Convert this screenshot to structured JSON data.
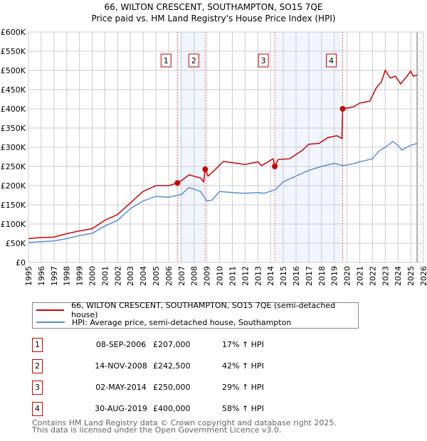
{
  "chart_data": {
    "type": "line",
    "title": "66, WILTON CRESCENT, SOUTHAMPTON, SO15 7QE",
    "subtitle": "Price paid vs. HM Land Registry's House Price Index (HPI)",
    "xlim": [
      1995,
      2026
    ],
    "ylim": [
      0,
      600000
    ],
    "x_ticks": [
      "1995",
      "1996",
      "1997",
      "1998",
      "1999",
      "2000",
      "2001",
      "2002",
      "2003",
      "2004",
      "2005",
      "2006",
      "2007",
      "2008",
      "2009",
      "2010",
      "2011",
      "2012",
      "2013",
      "2014",
      "2015",
      "2016",
      "2017",
      "2018",
      "2019",
      "2020",
      "2021",
      "2022",
      "2023",
      "2024",
      "2025",
      "2026"
    ],
    "y_ticks": [
      {
        "v": 0,
        "label": "£0"
      },
      {
        "v": 50000,
        "label": "£50K"
      },
      {
        "v": 100000,
        "label": "£100K"
      },
      {
        "v": 150000,
        "label": "£150K"
      },
      {
        "v": 200000,
        "label": "£200K"
      },
      {
        "v": 250000,
        "label": "£250K"
      },
      {
        "v": 300000,
        "label": "£300K"
      },
      {
        "v": 350000,
        "label": "£350K"
      },
      {
        "v": 400000,
        "label": "£400K"
      },
      {
        "v": 450000,
        "label": "£450K"
      },
      {
        "v": 500000,
        "label": "£500K"
      },
      {
        "v": 550000,
        "label": "£550K"
      },
      {
        "v": 600000,
        "label": "£600K"
      }
    ],
    "grid": true,
    "series": [
      {
        "name": "66, WILTON CRESCENT, SOUTHAMPTON, SO15 7QE (semi-detached house)",
        "color": "#cc0000",
        "x": [
          1995,
          1996,
          1997,
          1998,
          1999,
          2000,
          2001,
          2002,
          2003,
          2004,
          2005,
          2006,
          2006.69,
          2007,
          2007.6,
          2008.5,
          2008.75,
          2008.87,
          2009.1,
          2009.6,
          2010.3,
          2011,
          2012,
          2013,
          2013.3,
          2014.2,
          2014.33,
          2014.6,
          2015.5,
          2016.5,
          2017,
          2017.8,
          2018.5,
          2019.2,
          2019.6,
          2019.66,
          2020.5,
          2021,
          2021.8,
          2022.3,
          2022.7,
          2023,
          2023.4,
          2023.8,
          2024.2,
          2024.6,
          2025,
          2025.2,
          2025.5
        ],
        "y": [
          62000,
          65000,
          66000,
          75000,
          82000,
          88000,
          110000,
          125000,
          155000,
          185000,
          200000,
          200000,
          207000,
          213000,
          228000,
          220000,
          210000,
          242500,
          225000,
          240000,
          263000,
          260000,
          255000,
          262000,
          252000,
          270000,
          250000,
          268000,
          270000,
          292000,
          308000,
          310000,
          325000,
          330000,
          323000,
          400000,
          405000,
          415000,
          420000,
          455000,
          470000,
          500000,
          480000,
          485000,
          465000,
          480000,
          498000,
          485000,
          488000
        ]
      },
      {
        "name": "HPI: Average price, semi-detached house, Southampton",
        "color": "#5b8fd6",
        "x": [
          1995,
          1996,
          1997,
          1998,
          1999,
          2000,
          2001,
          2002,
          2003,
          2004,
          2005,
          2006,
          2007,
          2007.6,
          2008.5,
          2009,
          2009.4,
          2010,
          2011,
          2012,
          2013,
          2013.5,
          2014.4,
          2015,
          2016,
          2017,
          2018,
          2019,
          2019.7,
          2020.5,
          2021,
          2022,
          2022.5,
          2023,
          2023.6,
          2024,
          2024.3,
          2025,
          2025.5
        ],
        "y": [
          52000,
          54000,
          56000,
          62000,
          70000,
          76000,
          95000,
          110000,
          140000,
          160000,
          172000,
          170000,
          177000,
          195000,
          185000,
          160000,
          162000,
          185000,
          182000,
          180000,
          182000,
          180000,
          190000,
          210000,
          225000,
          240000,
          250000,
          258000,
          252000,
          257000,
          262000,
          270000,
          290000,
          300000,
          315000,
          305000,
          293000,
          305000,
          310000
        ]
      }
    ],
    "sales": [
      {
        "n": "1",
        "x": 2006.69,
        "date": "08-SEP-2006",
        "price": "£207,000",
        "value": 207000,
        "hpi": "17% ↑ HPI"
      },
      {
        "n": "2",
        "x": 2008.87,
        "date": "14-NOV-2008",
        "price": "£242,500",
        "value": 242500,
        "hpi": "42% ↑ HPI"
      },
      {
        "n": "3",
        "x": 2014.33,
        "date": "02-MAY-2014",
        "price": "£250,000",
        "value": 250000,
        "hpi": "29% ↑ HPI"
      },
      {
        "n": "4",
        "x": 2019.66,
        "date": "30-AUG-2019",
        "price": "£400,000",
        "value": 400000,
        "hpi": "58% ↑ HPI"
      }
    ],
    "shaded_ranges": [
      [
        2006.69,
        2008.87
      ],
      [
        2014.33,
        2019.66
      ]
    ],
    "forecast_from": 2025.5,
    "legend_position": "bottom"
  },
  "footer": {
    "line1": "Contains HM Land Registry data © Crown copyright and database right 2025.",
    "line2": "This data is licensed under the Open Government Licence v3.0."
  }
}
